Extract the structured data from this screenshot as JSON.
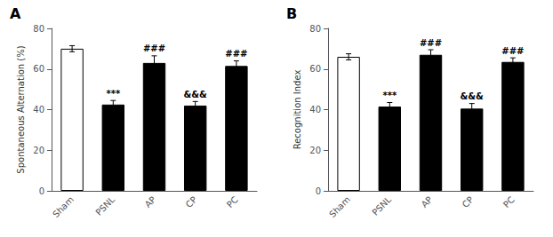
{
  "chart_data": [
    {
      "type": "bar",
      "title": "A",
      "ylabel": "Spontaneous Alternation (%)",
      "categories": [
        "Sham",
        "PSNL",
        "AP",
        "CP",
        "PC"
      ],
      "values": [
        70.0,
        42.5,
        63.0,
        42.0,
        61.5
      ],
      "errors": [
        1.5,
        2.0,
        3.5,
        2.0,
        2.5
      ],
      "colors": [
        "#ffffff",
        "#000000",
        "#000000",
        "#000000",
        "#000000"
      ],
      "annotations": [
        null,
        "***",
        "###",
        "&&&",
        "###"
      ],
      "ylim": [
        0,
        80
      ],
      "yticks": [
        0,
        20,
        40,
        60,
        80
      ],
      "grid": false
    },
    {
      "type": "bar",
      "title": "B",
      "ylabel": "Recognition Index",
      "categories": [
        "Sham",
        "PSNL",
        "AP",
        "CP",
        "PC"
      ],
      "values": [
        66.0,
        41.5,
        67.0,
        40.5,
        63.5
      ],
      "errors": [
        1.5,
        2.0,
        2.5,
        2.5,
        2.0
      ],
      "colors": [
        "#ffffff",
        "#000000",
        "#000000",
        "#000000",
        "#000000"
      ],
      "annotations": [
        null,
        "***",
        "###",
        "&&&",
        "###"
      ],
      "ylim": [
        0,
        80
      ],
      "yticks": [
        0,
        20,
        40,
        60,
        80
      ],
      "grid": false
    }
  ]
}
